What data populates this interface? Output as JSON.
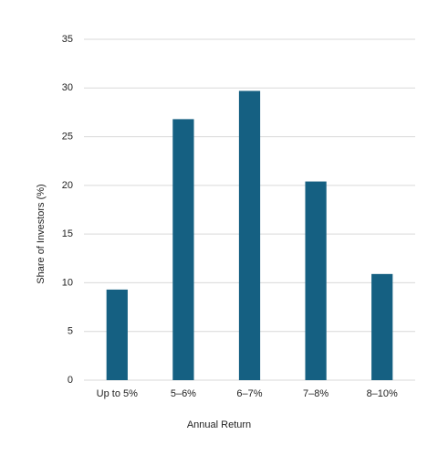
{
  "chart_data": {
    "type": "bar",
    "x_label": "Annual Return",
    "y_label": "Share of Investors (%)",
    "categories": [
      "Up to 5%",
      "5–6%",
      "6–7%",
      "7–8%",
      "8–10%"
    ],
    "values": [
      9.3,
      26.8,
      29.7,
      20.4,
      10.9
    ],
    "color": "#156082",
    "ylim": [
      0,
      35
    ],
    "yticks": [
      0,
      5,
      10,
      15,
      20,
      25,
      30,
      35
    ],
    "grid": true
  }
}
